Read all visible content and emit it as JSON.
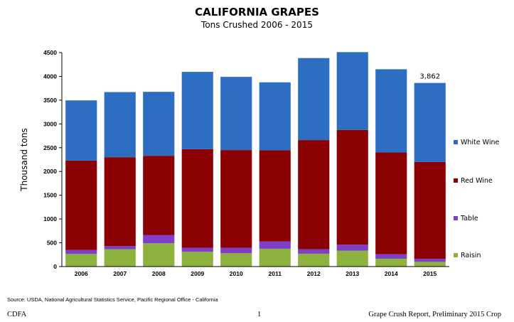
{
  "chart_data": {
    "type": "bar",
    "stacked": true,
    "title": "CALIFORNIA GRAPES",
    "subtitle": "Tons Crushed  2006 - 2015",
    "ylabel": "Thousand tons",
    "xlabel": "",
    "ylim": [
      0,
      4500
    ],
    "yticks": [
      "0",
      "500",
      "1000",
      "1500",
      "2000",
      "2500",
      "3000",
      "3500",
      "4000",
      "4500"
    ],
    "categories": [
      "2006",
      "2007",
      "2008",
      "2009",
      "2010",
      "2011",
      "2012",
      "2013",
      "2014",
      "2015"
    ],
    "series": [
      {
        "name": "Raisin",
        "color": "#8db33e",
        "values": [
          265,
          365,
          490,
          310,
          280,
          375,
          270,
          335,
          165,
          100
        ]
      },
      {
        "name": "Table",
        "color": "#7e3fc6",
        "values": [
          85,
          65,
          175,
          85,
          115,
          155,
          95,
          125,
          95,
          65
        ]
      },
      {
        "name": "Red Wine",
        "color": "#8b0000",
        "values": [
          1880,
          1870,
          1665,
          2075,
          2055,
          1915,
          2295,
          2415,
          2140,
          2035
        ]
      },
      {
        "name": "White Wine",
        "color": "#2e6ec2",
        "values": [
          1265,
          1370,
          1345,
          1625,
          1540,
          1430,
          1725,
          1635,
          1750,
          1662
        ]
      }
    ],
    "annotations": [
      {
        "category": "2015",
        "text": "3,862"
      }
    ],
    "legend": "right",
    "grid": false
  },
  "source": "Source: USDA, National Agricultural Statistics Service, Pacific Regional Office - California",
  "footer": {
    "left": "CDFA",
    "center": "1",
    "right": "Grape Crush Report, Preliminary 2015 Crop"
  }
}
